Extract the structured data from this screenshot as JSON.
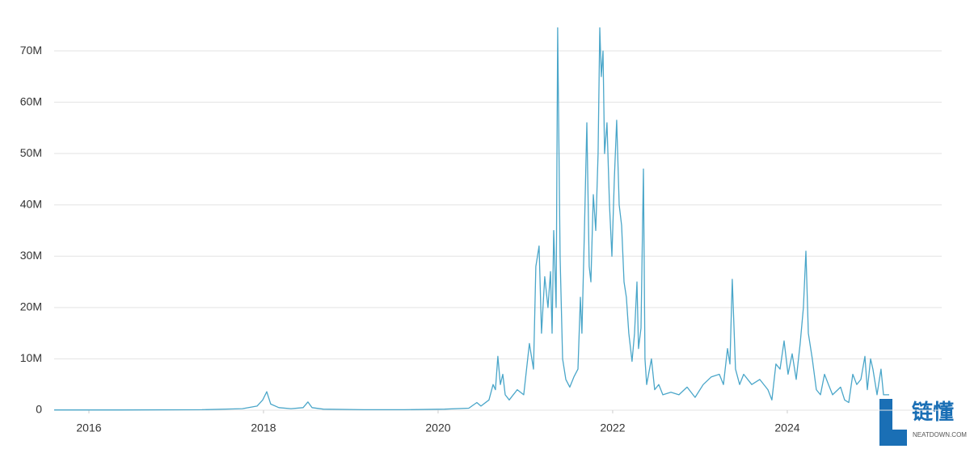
{
  "chart_data": {
    "type": "line",
    "x": [
      2015.602,
      2016.37,
      2017.296,
      2017.759,
      2017.926,
      2017.991,
      2018.037,
      2018.083,
      2018.176,
      2018.315,
      2018.454,
      2018.509,
      2018.556,
      2018.685,
      2019.148,
      2019.611,
      2020.074,
      2020.352,
      2020.444,
      2020.491,
      2020.583,
      2020.63,
      2020.657,
      2020.685,
      2020.713,
      2020.741,
      2020.769,
      2020.815,
      2020.907,
      2020.981,
      2021.046,
      2021.093,
      2021.12,
      2021.157,
      2021.185,
      2021.222,
      2021.259,
      2021.287,
      2021.306,
      2021.324,
      2021.352,
      2021.37,
      2021.398,
      2021.426,
      2021.463,
      2021.509,
      2021.556,
      2021.602,
      2021.63,
      2021.648,
      2021.676,
      2021.704,
      2021.731,
      2021.75,
      2021.778,
      2021.806,
      2021.833,
      2021.852,
      2021.87,
      2021.889,
      2021.907,
      2021.935,
      2021.963,
      2021.991,
      2022.019,
      2022.046,
      2022.074,
      2022.102,
      2022.13,
      2022.157,
      2022.185,
      2022.222,
      2022.25,
      2022.278,
      2022.296,
      2022.324,
      2022.352,
      2022.37,
      2022.389,
      2022.444,
      2022.481,
      2022.528,
      2022.574,
      2022.667,
      2022.759,
      2022.852,
      2022.944,
      2023.037,
      2023.13,
      2023.222,
      2023.269,
      2023.315,
      2023.343,
      2023.37,
      2023.407,
      2023.454,
      2023.5,
      2023.593,
      2023.685,
      2023.778,
      2023.824,
      2023.87,
      2023.917,
      2023.963,
      2024.009,
      2024.056,
      2024.102,
      2024.148,
      2024.185,
      2024.213,
      2024.241,
      2024.287,
      2024.333,
      2024.38,
      2024.426,
      2024.472,
      2024.519,
      2024.611,
      2024.657,
      2024.704,
      2024.75,
      2024.796,
      2024.843,
      2024.889,
      2024.917,
      2024.954,
      2024.981,
      2025.028,
      2025.074,
      2025.102,
      2025.167
    ],
    "series": [
      {
        "color": "#4aa6c9",
        "values": [
          0.05,
          0.05,
          0.1,
          0.3,
          0.8,
          2,
          3.6,
          1.2,
          0.5,
          0.3,
          0.5,
          1.6,
          0.5,
          0.2,
          0.1,
          0.1,
          0.2,
          0.4,
          1.5,
          0.8,
          2,
          5,
          4,
          10.5,
          5,
          7,
          3,
          2,
          4,
          3,
          13,
          8,
          28,
          32,
          15,
          26,
          20,
          27,
          15,
          35,
          20,
          74.5,
          30,
          10,
          6,
          4.5,
          6.5,
          8,
          22,
          15,
          35,
          56,
          28,
          25,
          42,
          35,
          50,
          74.5,
          65,
          70,
          50,
          56,
          40,
          30,
          45,
          56.5,
          40,
          36,
          25,
          22,
          15,
          9.5,
          15,
          25,
          12,
          16,
          47,
          10,
          5,
          10,
          4,
          5,
          3,
          3.5,
          3,
          4.5,
          2.5,
          5,
          6.5,
          7,
          5,
          12,
          9,
          25.5,
          8,
          5,
          7,
          5,
          6,
          4,
          2,
          9,
          8,
          13.5,
          7,
          11,
          6,
          13,
          20,
          31,
          15,
          10,
          4,
          3,
          7,
          5,
          3,
          4.5,
          2,
          1.5,
          7,
          5,
          6,
          10.5,
          4,
          10,
          8,
          3,
          8,
          3,
          3
        ]
      }
    ],
    "xlim": [
      2015.602,
      2025.769
    ],
    "xticks": [
      2016,
      2018,
      2020,
      2022,
      2024
    ],
    "ylim": [
      0,
      75.2
    ],
    "yticks": [
      0,
      {
        "value": 10,
        "label": "10M"
      },
      {
        "value": 20,
        "label": "20M"
      },
      {
        "value": 30,
        "label": "30M"
      },
      {
        "value": 40,
        "label": "40M"
      },
      {
        "value": 50,
        "label": "50M"
      },
      {
        "value": 60,
        "label": "60M"
      },
      {
        "value": 70,
        "label": "70M"
      }
    ],
    "grid": true
  },
  "watermark": {
    "name": "链懂",
    "site": "NEATDOWN.COM"
  }
}
